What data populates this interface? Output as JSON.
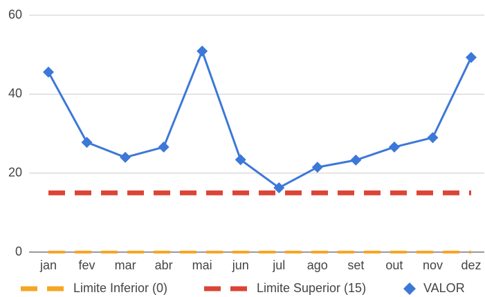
{
  "chart_data": {
    "type": "line",
    "categories": [
      "jan",
      "fev",
      "mar",
      "abr",
      "mai",
      "jun",
      "jul",
      "ago",
      "set",
      "out",
      "nov",
      "dez"
    ],
    "series": [
      {
        "name": "Limite Inferior (0)",
        "color": "#f6a623",
        "dashed": true,
        "values": [
          0,
          0,
          0,
          0,
          0,
          0,
          0,
          0,
          0,
          0,
          0,
          0
        ]
      },
      {
        "name": "Limite Superior (15)",
        "color": "#db4437",
        "dashed": true,
        "values": [
          15,
          15,
          15,
          15,
          15,
          15,
          15,
          15,
          15,
          15,
          15,
          15
        ]
      },
      {
        "name": "VALOR",
        "color": "#3c78d8",
        "marker": "diamond",
        "values": [
          45.6,
          27.8,
          24,
          26.6,
          50.9,
          23.4,
          16.3,
          21.5,
          23.3,
          26.6,
          29,
          49.3
        ]
      }
    ],
    "ylim": [
      0,
      60
    ],
    "yticks": [
      0,
      20,
      40,
      60
    ],
    "grid": true,
    "legend": "bottom"
  }
}
